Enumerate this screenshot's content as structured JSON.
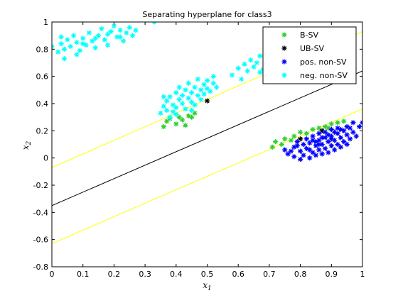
{
  "chart_data": {
    "type": "scatter",
    "title": "Separating hyperplane for class3",
    "xlabel": "x1",
    "ylabel": "x2",
    "xlabel_main": "x",
    "xlabel_sub": "1",
    "ylabel_main": "x",
    "ylabel_sub": "2",
    "xlim": [
      0,
      1
    ],
    "ylim": [
      -0.8,
      1
    ],
    "xticks": [
      0,
      0.1,
      0.2,
      0.3,
      0.4,
      0.5,
      0.6,
      0.7,
      0.8,
      0.9,
      1
    ],
    "yticks": [
      -0.8,
      -0.6,
      -0.4,
      -0.2,
      0,
      0.2,
      0.4,
      0.6,
      0.8,
      1
    ],
    "xtick_labels": [
      "0",
      "0.1",
      "0.2",
      "0.3",
      "0.4",
      "0.5",
      "0.6",
      "0.7",
      "0.8",
      "0.9",
      "1"
    ],
    "ytick_labels": [
      "-0.8",
      "-0.6",
      "-0.4",
      "-0.2",
      "0",
      "0.2",
      "0.4",
      "0.6",
      "0.8",
      "1"
    ],
    "grid": false,
    "legend_location": "top-right",
    "lines": [
      {
        "role": "decision-boundary",
        "color": "#000000",
        "x": [
          0,
          1
        ],
        "y": [
          -0.35,
          0.64
        ]
      },
      {
        "role": "margin-upper",
        "color": "#ffff00",
        "x": [
          0,
          1
        ],
        "y": [
          -0.07,
          0.93
        ]
      },
      {
        "role": "margin-lower",
        "color": "#ffff00",
        "x": [
          0,
          1
        ],
        "y": [
          -0.63,
          0.36
        ]
      }
    ],
    "series": [
      {
        "name": "B-SV",
        "color": "#33cc33",
        "marker": "*",
        "points": [
          [
            0.37,
            0.27
          ],
          [
            0.4,
            0.25
          ],
          [
            0.42,
            0.28
          ],
          [
            0.44,
            0.31
          ],
          [
            0.46,
            0.33
          ],
          [
            0.38,
            0.29
          ],
          [
            0.41,
            0.3
          ],
          [
            0.36,
            0.23
          ],
          [
            0.43,
            0.24
          ],
          [
            0.45,
            0.3
          ],
          [
            0.72,
            0.12
          ],
          [
            0.75,
            0.14
          ],
          [
            0.78,
            0.16
          ],
          [
            0.8,
            0.19
          ],
          [
            0.84,
            0.21
          ],
          [
            0.86,
            0.22
          ],
          [
            0.88,
            0.23
          ],
          [
            0.9,
            0.25
          ],
          [
            0.92,
            0.26
          ],
          [
            0.74,
            0.1
          ],
          [
            0.77,
            0.13
          ],
          [
            0.82,
            0.18
          ],
          [
            0.89,
            0.22
          ],
          [
            0.71,
            0.08
          ],
          [
            0.94,
            0.27
          ]
        ]
      },
      {
        "name": "UB-SV",
        "color": "#000000",
        "marker": "*",
        "points": [
          [
            0.5,
            0.42
          ],
          [
            0.8,
            0.14
          ],
          [
            0.87,
            0.2
          ]
        ]
      },
      {
        "name": "pos. non-SV",
        "color": "#0000ff",
        "marker": "*",
        "points": [
          [
            0.75,
            0.06
          ],
          [
            0.76,
            0.03
          ],
          [
            0.78,
            0.08
          ],
          [
            0.78,
            0.01
          ],
          [
            0.79,
            0.12
          ],
          [
            0.8,
            0.05
          ],
          [
            0.8,
            -0.01
          ],
          [
            0.81,
            0.1
          ],
          [
            0.81,
            0.02
          ],
          [
            0.82,
            0.14
          ],
          [
            0.82,
            0.07
          ],
          [
            0.83,
            0.0
          ],
          [
            0.83,
            0.11
          ],
          [
            0.84,
            0.04
          ],
          [
            0.84,
            0.16
          ],
          [
            0.85,
            0.09
          ],
          [
            0.85,
            0.02
          ],
          [
            0.86,
            0.13
          ],
          [
            0.86,
            0.06
          ],
          [
            0.86,
            0.18
          ],
          [
            0.87,
            0.1
          ],
          [
            0.87,
            0.03
          ],
          [
            0.88,
            0.15
          ],
          [
            0.88,
            0.07
          ],
          [
            0.88,
            0.19
          ],
          [
            0.89,
            0.12
          ],
          [
            0.89,
            0.04
          ],
          [
            0.9,
            0.16
          ],
          [
            0.9,
            0.09
          ],
          [
            0.9,
            0.21
          ],
          [
            0.91,
            0.13
          ],
          [
            0.91,
            0.06
          ],
          [
            0.92,
            0.18
          ],
          [
            0.92,
            0.1
          ],
          [
            0.92,
            0.22
          ],
          [
            0.93,
            0.15
          ],
          [
            0.93,
            0.08
          ],
          [
            0.94,
            0.2
          ],
          [
            0.94,
            0.12
          ],
          [
            0.95,
            0.17
          ],
          [
            0.95,
            0.1
          ],
          [
            0.96,
            0.22
          ],
          [
            0.96,
            0.14
          ],
          [
            0.97,
            0.19
          ],
          [
            0.97,
            0.26
          ],
          [
            0.98,
            0.16
          ],
          [
            0.99,
            0.23
          ],
          [
            1.0,
            0.26
          ],
          [
            0.77,
            0.05
          ],
          [
            0.79,
            0.09
          ],
          [
            0.83,
            0.06
          ],
          [
            0.85,
            0.12
          ],
          [
            0.87,
            0.15
          ],
          [
            0.89,
            0.17
          ],
          [
            0.91,
            0.19
          ],
          [
            0.93,
            0.21
          ],
          [
            0.95,
            0.23
          ],
          [
            0.84,
            0.13
          ],
          [
            0.86,
            0.1
          ],
          [
            0.9,
            0.14
          ]
        ]
      },
      {
        "name": "neg. non-SV",
        "color": "#00ffff",
        "marker": "*",
        "points": [
          [
            0.0,
            0.82
          ],
          [
            0.02,
            0.78
          ],
          [
            0.03,
            0.84
          ],
          [
            0.04,
            0.8
          ],
          [
            0.05,
            0.87
          ],
          [
            0.06,
            0.82
          ],
          [
            0.07,
            0.9
          ],
          [
            0.08,
            0.85
          ],
          [
            0.09,
            0.79
          ],
          [
            0.1,
            0.88
          ],
          [
            0.11,
            0.83
          ],
          [
            0.12,
            0.92
          ],
          [
            0.13,
            0.86
          ],
          [
            0.14,
            0.81
          ],
          [
            0.15,
            0.9
          ],
          [
            0.16,
            0.95
          ],
          [
            0.17,
            0.87
          ],
          [
            0.18,
            0.83
          ],
          [
            0.19,
            0.93
          ],
          [
            0.2,
            0.97
          ],
          [
            0.21,
            0.89
          ],
          [
            0.22,
            0.94
          ],
          [
            0.23,
            0.86
          ],
          [
            0.24,
            0.92
          ],
          [
            0.25,
            0.96
          ],
          [
            0.26,
            0.9
          ],
          [
            0.27,
            0.94
          ],
          [
            0.33,
            1.0
          ],
          [
            0.04,
            0.73
          ],
          [
            0.08,
            0.76
          ],
          [
            0.1,
            0.84
          ],
          [
            0.14,
            0.88
          ],
          [
            0.18,
            0.91
          ],
          [
            0.22,
            0.89
          ],
          [
            0.03,
            0.89
          ],
          [
            0.35,
            0.33
          ],
          [
            0.36,
            0.38
          ],
          [
            0.37,
            0.35
          ],
          [
            0.37,
            0.42
          ],
          [
            0.38,
            0.3
          ],
          [
            0.38,
            0.45
          ],
          [
            0.39,
            0.39
          ],
          [
            0.39,
            0.34
          ],
          [
            0.4,
            0.48
          ],
          [
            0.4,
            0.37
          ],
          [
            0.41,
            0.43
          ],
          [
            0.41,
            0.52
          ],
          [
            0.42,
            0.4
          ],
          [
            0.42,
            0.46
          ],
          [
            0.43,
            0.36
          ],
          [
            0.43,
            0.5
          ],
          [
            0.44,
            0.44
          ],
          [
            0.44,
            0.55
          ],
          [
            0.45,
            0.41
          ],
          [
            0.45,
            0.48
          ],
          [
            0.46,
            0.52
          ],
          [
            0.46,
            0.39
          ],
          [
            0.47,
            0.46
          ],
          [
            0.47,
            0.58
          ],
          [
            0.48,
            0.5
          ],
          [
            0.48,
            0.43
          ],
          [
            0.49,
            0.54
          ],
          [
            0.49,
            0.47
          ],
          [
            0.5,
            0.51
          ],
          [
            0.5,
            0.57
          ],
          [
            0.51,
            0.49
          ],
          [
            0.52,
            0.55
          ],
          [
            0.52,
            0.6
          ],
          [
            0.53,
            0.52
          ],
          [
            0.4,
            0.32
          ],
          [
            0.36,
            0.45
          ],
          [
            0.45,
            0.35
          ],
          [
            0.58,
            0.61
          ],
          [
            0.6,
            0.66
          ],
          [
            0.62,
            0.69
          ],
          [
            0.63,
            0.64
          ],
          [
            0.64,
            0.72
          ],
          [
            0.65,
            0.67
          ],
          [
            0.66,
            0.7
          ],
          [
            0.67,
            0.75
          ],
          [
            0.68,
            0.65
          ],
          [
            0.69,
            0.71
          ],
          [
            0.7,
            0.68
          ],
          [
            0.71,
            0.74
          ],
          [
            0.72,
            0.69
          ],
          [
            0.73,
            0.72
          ],
          [
            0.74,
            0.77
          ],
          [
            0.61,
            0.58
          ],
          [
            0.67,
            0.63
          ],
          [
            0.72,
            0.62
          ]
        ]
      }
    ]
  }
}
